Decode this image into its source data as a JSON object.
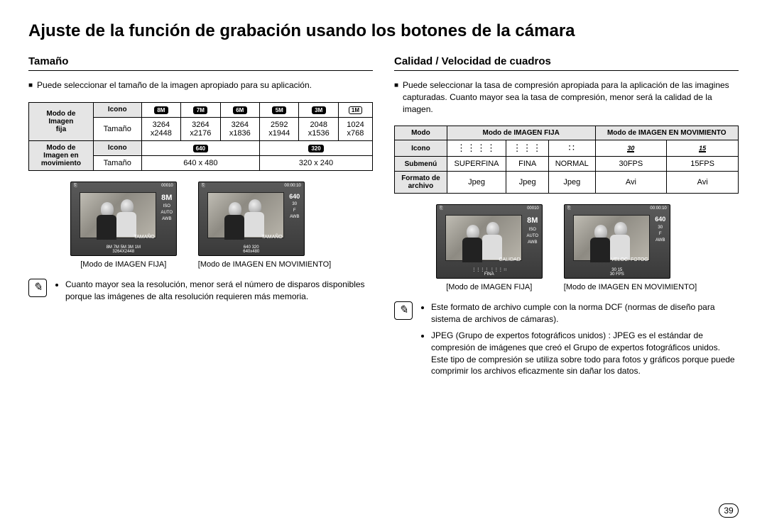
{
  "page": {
    "title": "Ajuste de la función de grabación usando los botones de la cámara",
    "number": "39"
  },
  "left": {
    "heading": "Tamaño",
    "intro": "Puede seleccionar el tamaño de la imagen apropiado para su aplicación.",
    "table": {
      "row1_label": "Modo de\nImagen\nfija",
      "row1a_head": "Icono",
      "row1a_icons": [
        "8M",
        "7M",
        "6M",
        "5M",
        "3M",
        "1M"
      ],
      "row1b_head": "Tamaño",
      "row1b_vals": [
        "3264\nx2448",
        "3264\nx2176",
        "3264\nx1836",
        "2592\nx1944",
        "2048\nx1536",
        "1024\nx768"
      ],
      "row2_label": "Modo de\nImagen en\nmovimiento",
      "row2a_head": "Icono",
      "row2a_icons": [
        "640",
        "320"
      ],
      "row2b_head": "Tamaño",
      "row2b_vals": [
        "640 x 480",
        "320 x 240"
      ]
    },
    "preview1": {
      "top_left": "⎘",
      "top_right": "00010",
      "mid": "TAMAÑO",
      "bottom_icons": "8M 7M 5M 3M 1M",
      "bottom_val": "3264X2448",
      "right_big": "8M",
      "caption": "[Modo de IMAGEN FIJA]"
    },
    "preview2": {
      "top_left": "⎘",
      "top_right": "00:00:10",
      "mid": "TAMAÑO",
      "bottom_icons": "640 320",
      "bottom_val": "640x480",
      "right_big": "640",
      "caption": "[Modo de IMAGEN EN MOVIMIENTO]"
    },
    "note": "Cuanto mayor sea la resolución, menor será el número de disparos disponibles porque las imágenes de alta resolución requieren más memoria."
  },
  "right": {
    "heading": "Calidad / Velocidad de cuadros",
    "intro": "Puede seleccionar la tasa de compresión apropiada para la aplicación de las imagines capturadas. Cuanto mayor sea la tasa de compresión, menor será la calidad de la imagen.",
    "table": {
      "h_mode": "Modo",
      "h_still": "Modo de IMAGEN FIJA",
      "h_movie": "Modo de IMAGEN EN MOVIMIENTO",
      "r_icon": "Icono",
      "r_submenu": "Submenú",
      "submenu_vals": [
        "SUPERFINA",
        "FINA",
        "NORMAL",
        "30FPS",
        "15FPS"
      ],
      "r_format": "Formato de\narchivo",
      "format_vals": [
        "Jpeg",
        "Jpeg",
        "Jpeg",
        "Avi",
        "Avi"
      ],
      "fps_icons": [
        "30",
        "15"
      ]
    },
    "preview1": {
      "top_left": "⎘",
      "top_right": "00010",
      "mid": "CALIDAD",
      "bottom_val": "FINA",
      "right_big": "8M",
      "caption": "[Modo de IMAGEN FIJA]"
    },
    "preview2": {
      "top_left": "⎘",
      "top_right": "00:00:10",
      "mid": "VELOC. FOTOG",
      "bottom_icons": "30 15",
      "bottom_val": "30 FPS",
      "right_big": "640",
      "caption": "[Modo de IMAGEN EN MOVIMIENTO]"
    },
    "notes": [
      "Este formato de archivo cumple con la norma DCF (normas de diseño para sistema de archivos de cámaras).",
      "JPEG (Grupo de expertos fotográficos unidos) : JPEG es el estándar de compresión de imágenes que creó el Grupo de expertos fotográficos unidos. Este tipo de compresión se utiliza sobre todo para fotos y gráficos porque puede comprimir los archivos eficazmente sin dañar los datos."
    ]
  }
}
